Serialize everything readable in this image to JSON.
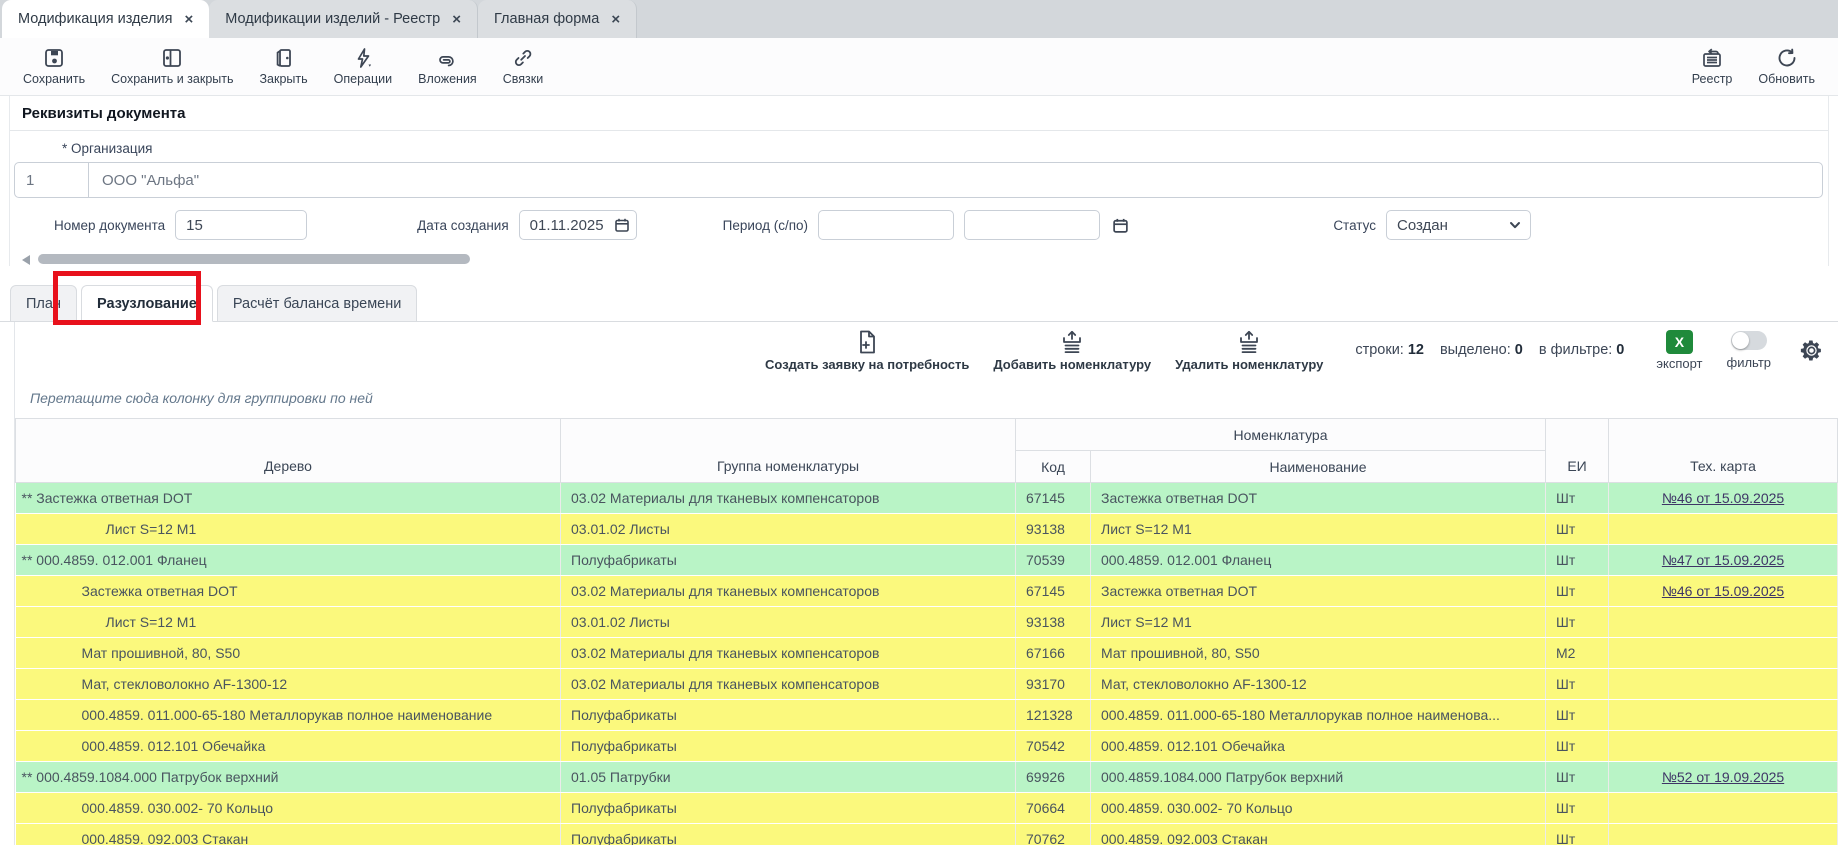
{
  "colors": {
    "row_green": "#b9f4c6",
    "row_yellow": "#fbf97d",
    "export_green": "#1f8a3b",
    "highlight_red": "#e8111c",
    "link": "#3e3566"
  },
  "window_tabs": {
    "close_glyph": "×",
    "items": [
      {
        "label": "Модификация изделия",
        "active": true
      },
      {
        "label": "Модификации изделий - Реестр",
        "active": false
      },
      {
        "label": "Главная форма",
        "active": false
      }
    ]
  },
  "toolbar": {
    "save": "Сохранить",
    "save_close": "Сохранить и закрыть",
    "close": "Закрыть",
    "operations": "Операции",
    "attachments": "Вложения",
    "links": "Связки",
    "registry": "Реестр",
    "refresh": "Обновить"
  },
  "doc": {
    "title": "Реквизиты документа",
    "org_label": "* Организация",
    "org_code": "1",
    "org_name": "ООО \"Альфа\"",
    "num_label": "Номер документа",
    "num_value": "15",
    "date_label": "Дата создания",
    "date_value": "01.11.2025",
    "period_label": "Период (с/по)",
    "period_from": "",
    "period_to": "",
    "status_label": "Статус",
    "status_value": "Создан"
  },
  "content_tabs": {
    "plan": "План",
    "breakdown": "Разузлование",
    "balance": "Расчёт баланса времени"
  },
  "grid_toolbar": {
    "create_request": "Создать заявку на потребность",
    "add_item": "Добавить номенклатуру",
    "remove_item": "Удалить номенклатуру",
    "rows_label": "строки:",
    "rows_value": "12",
    "selected_label": "выделено:",
    "selected_value": "0",
    "filtered_label": "в фильтре:",
    "filtered_value": "0",
    "export_glyph": "X",
    "export_label": "экспорт",
    "filter_label": "фильтр"
  },
  "group_hint": "Перетащите сюда колонку для группировки по ней",
  "table": {
    "headers": {
      "tree": "Дерево",
      "group": "Группа номенклатуры",
      "nomenclature": "Номенклатура",
      "code": "Код",
      "name": "Наименование",
      "unit": "ЕИ",
      "techcard": "Тех. карта"
    },
    "rows": [
      {
        "tree": "** Застежка ответная DOT",
        "indent": 0,
        "group": "03.02 Материалы для тканевых компенсаторов",
        "code": "67145",
        "name": "Застежка ответная DOT",
        "unit": "Шт",
        "techcard": "№46 от 15.09.2025",
        "highlight": "green"
      },
      {
        "tree": "Лист S=12 М1",
        "indent": 2,
        "group": "03.01.02 Листы",
        "code": "93138",
        "name": "Лист S=12 М1",
        "unit": "Шт",
        "techcard": "",
        "highlight": "yellow"
      },
      {
        "tree": "** 000.4859. 012.001 Фланец",
        "indent": 0,
        "group": "Полуфабрикаты",
        "code": "70539",
        "name": "000.4859. 012.001 Фланец",
        "unit": "Шт",
        "techcard": "№47 от 15.09.2025",
        "highlight": "green"
      },
      {
        "tree": "Застежка ответная DOT",
        "indent": 1,
        "group": "03.02 Материалы для тканевых компенсаторов",
        "code": "67145",
        "name": "Застежка ответная DOT",
        "unit": "Шт",
        "techcard": "№46 от 15.09.2025",
        "highlight": "yellow"
      },
      {
        "tree": "Лист S=12 М1",
        "indent": 2,
        "group": "03.01.02 Листы",
        "code": "93138",
        "name": "Лист S=12 М1",
        "unit": "Шт",
        "techcard": "",
        "highlight": "yellow"
      },
      {
        "tree": "Мат прошивной, 80, S50",
        "indent": 1,
        "group": "03.02 Материалы для тканевых компенсаторов",
        "code": "67166",
        "name": "Мат прошивной, 80, S50",
        "unit": "М2",
        "techcard": "",
        "highlight": "yellow"
      },
      {
        "tree": "Мат, стекловолокно AF-1300-12",
        "indent": 1,
        "group": "03.02 Материалы для тканевых компенсаторов",
        "code": "93170",
        "name": "Мат, стекловолокно AF-1300-12",
        "unit": "Шт",
        "techcard": "",
        "highlight": "yellow"
      },
      {
        "tree": "000.4859. 011.000-65-180 Металлорукав полное наименование",
        "indent": 1,
        "group": "Полуфабрикаты",
        "code": "121328",
        "name": "000.4859. 011.000-65-180 Металлорукав полное наименова...",
        "unit": "Шт",
        "techcard": "",
        "highlight": "yellow"
      },
      {
        "tree": "000.4859. 012.101 Обечайка",
        "indent": 1,
        "group": "Полуфабрикаты",
        "code": "70542",
        "name": "000.4859. 012.101 Обечайка",
        "unit": "Шт",
        "techcard": "",
        "highlight": "yellow"
      },
      {
        "tree": "** 000.4859.1084.000 Патрубок верхний",
        "indent": 0,
        "group": "01.05 Патрубки",
        "code": "69926",
        "name": "000.4859.1084.000 Патрубок верхний",
        "unit": "Шт",
        "techcard": "№52 от 19.09.2025",
        "highlight": "green"
      },
      {
        "tree": "000.4859. 030.002- 70 Кольцо",
        "indent": 1,
        "group": "Полуфабрикаты",
        "code": "70664",
        "name": "000.4859. 030.002- 70 Кольцо",
        "unit": "Шт",
        "techcard": "",
        "highlight": "yellow"
      },
      {
        "tree": "000.4859. 092.003 Стакан",
        "indent": 1,
        "group": "Полуфабрикаты",
        "code": "70762",
        "name": "000.4859. 092.003 Стакан",
        "unit": "Шт",
        "techcard": "",
        "highlight": "yellow"
      }
    ]
  }
}
